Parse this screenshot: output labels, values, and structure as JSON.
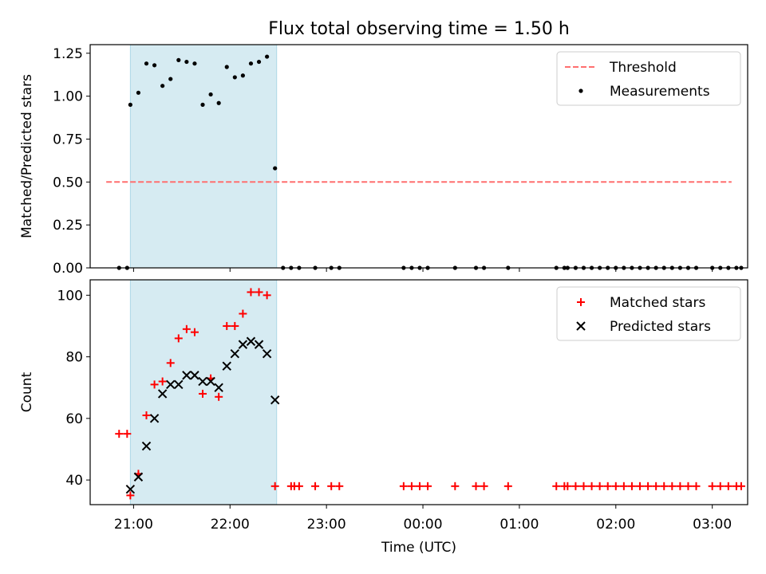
{
  "figure": {
    "title": "Flux total observing time = 1.50 h"
  },
  "chart_data": [
    {
      "type": "scatter",
      "panel": "top",
      "ylabel": "Matched/Predicted stars",
      "ylim": [
        0,
        1.3
      ],
      "yticks": [
        0,
        0.25,
        0.5,
        0.75,
        1.0,
        1.25
      ],
      "ytick_labels": [
        "0.00",
        "0.25",
        "0.50",
        "0.75",
        "1.00",
        "1.25"
      ],
      "xlim": [
        "20:33",
        "03:22"
      ],
      "xticks": [
        "21:00",
        "22:00",
        "23:00",
        "00:00",
        "01:00",
        "02:00",
        "03:00"
      ],
      "shaded_interval": {
        "start": "20:58",
        "end": "22:29",
        "color": "#add8e6"
      },
      "threshold": {
        "name": "Threshold",
        "value": 0.5,
        "x_range": [
          "20:43",
          "03:12"
        ],
        "color": "#ff6f6f",
        "style": "dashed"
      },
      "series": [
        {
          "name": "Measurements",
          "color": "#000000",
          "points": [
            [
              "20:51",
              0.0
            ],
            [
              "20:56",
              0.0
            ],
            [
              "20:58",
              0.95
            ],
            [
              "21:03",
              1.02
            ],
            [
              "21:08",
              1.19
            ],
            [
              "21:13",
              1.18
            ],
            [
              "21:18",
              1.06
            ],
            [
              "21:23",
              1.1
            ],
            [
              "21:28",
              1.21
            ],
            [
              "21:33",
              1.2
            ],
            [
              "21:38",
              1.19
            ],
            [
              "21:43",
              0.95
            ],
            [
              "21:48",
              1.01
            ],
            [
              "21:53",
              0.96
            ],
            [
              "21:58",
              1.17
            ],
            [
              "22:03",
              1.11
            ],
            [
              "22:08",
              1.12
            ],
            [
              "22:13",
              1.19
            ],
            [
              "22:18",
              1.2
            ],
            [
              "22:23",
              1.23
            ],
            [
              "22:28",
              0.58
            ],
            [
              "22:33",
              0.0
            ],
            [
              "22:38",
              0.0
            ],
            [
              "22:43",
              0.0
            ],
            [
              "22:53",
              0.0
            ],
            [
              "23:03",
              0.0
            ],
            [
              "23:08",
              0.0
            ],
            [
              "23:48",
              0.0
            ],
            [
              "23:53",
              0.0
            ],
            [
              "23:58",
              0.0
            ],
            [
              "00:03",
              0.0
            ],
            [
              "00:20",
              0.0
            ],
            [
              "00:33",
              0.0
            ],
            [
              "00:38",
              0.0
            ],
            [
              "00:53",
              0.0
            ],
            [
              "01:23",
              0.0
            ],
            [
              "01:28",
              0.0
            ],
            [
              "01:30",
              0.0
            ],
            [
              "01:35",
              0.0
            ],
            [
              "01:40",
              0.0
            ],
            [
              "01:45",
              0.0
            ],
            [
              "01:50",
              0.0
            ],
            [
              "01:55",
              0.0
            ],
            [
              "02:00",
              0.0
            ],
            [
              "02:05",
              0.0
            ],
            [
              "02:10",
              0.0
            ],
            [
              "02:15",
              0.0
            ],
            [
              "02:20",
              0.0
            ],
            [
              "02:25",
              0.0
            ],
            [
              "02:30",
              0.0
            ],
            [
              "02:35",
              0.0
            ],
            [
              "02:40",
              0.0
            ],
            [
              "02:45",
              0.0
            ],
            [
              "02:50",
              0.0
            ],
            [
              "03:00",
              0.0
            ],
            [
              "03:05",
              0.0
            ],
            [
              "03:10",
              0.0
            ],
            [
              "03:15",
              0.0
            ],
            [
              "03:18",
              0.0
            ]
          ]
        }
      ],
      "legend": {
        "position": "top-right",
        "entries": [
          "Threshold",
          "Measurements"
        ]
      }
    },
    {
      "type": "scatter",
      "panel": "bottom",
      "xlabel": "Time (UTC)",
      "ylabel": "Count",
      "ylim": [
        32,
        105
      ],
      "yticks": [
        40,
        60,
        80,
        100
      ],
      "ytick_labels": [
        "40",
        "60",
        "80",
        "100"
      ],
      "xlim": [
        "20:33",
        "03:22"
      ],
      "xticks": [
        "21:00",
        "22:00",
        "23:00",
        "00:00",
        "01:00",
        "02:00",
        "03:00"
      ],
      "xtick_labels": [
        "21:00",
        "22:00",
        "23:00",
        "00:00",
        "01:00",
        "02:00",
        "03:00"
      ],
      "shaded_interval": {
        "start": "20:58",
        "end": "22:29",
        "color": "#add8e6"
      },
      "series": [
        {
          "name": "Matched stars",
          "color": "#ff0000",
          "marker": "+",
          "points": [
            [
              "20:51",
              55
            ],
            [
              "20:56",
              55
            ],
            [
              "20:58",
              35
            ],
            [
              "21:03",
              42
            ],
            [
              "21:08",
              61
            ],
            [
              "21:13",
              71
            ],
            [
              "21:18",
              72
            ],
            [
              "21:23",
              78
            ],
            [
              "21:28",
              86
            ],
            [
              "21:33",
              89
            ],
            [
              "21:38",
              88
            ],
            [
              "21:43",
              68
            ],
            [
              "21:48",
              73
            ],
            [
              "21:53",
              67
            ],
            [
              "21:58",
              90
            ],
            [
              "22:03",
              90
            ],
            [
              "22:08",
              94
            ],
            [
              "22:13",
              101
            ],
            [
              "22:18",
              101
            ],
            [
              "22:23",
              100
            ],
            [
              "22:28",
              38
            ],
            [
              "22:38",
              38
            ],
            [
              "22:40",
              38
            ],
            [
              "22:43",
              38
            ],
            [
              "22:53",
              38
            ],
            [
              "23:03",
              38
            ],
            [
              "23:08",
              38
            ],
            [
              "23:48",
              38
            ],
            [
              "23:53",
              38
            ],
            [
              "23:58",
              38
            ],
            [
              "00:03",
              38
            ],
            [
              "00:20",
              38
            ],
            [
              "00:33",
              38
            ],
            [
              "00:38",
              38
            ],
            [
              "00:53",
              38
            ],
            [
              "01:23",
              38
            ],
            [
              "01:28",
              38
            ],
            [
              "01:30",
              38
            ],
            [
              "01:35",
              38
            ],
            [
              "01:40",
              38
            ],
            [
              "01:45",
              38
            ],
            [
              "01:50",
              38
            ],
            [
              "01:55",
              38
            ],
            [
              "02:00",
              38
            ],
            [
              "02:05",
              38
            ],
            [
              "02:10",
              38
            ],
            [
              "02:15",
              38
            ],
            [
              "02:20",
              38
            ],
            [
              "02:25",
              38
            ],
            [
              "02:30",
              38
            ],
            [
              "02:35",
              38
            ],
            [
              "02:40",
              38
            ],
            [
              "02:45",
              38
            ],
            [
              "02:50",
              38
            ],
            [
              "03:00",
              38
            ],
            [
              "03:05",
              38
            ],
            [
              "03:10",
              38
            ],
            [
              "03:15",
              38
            ],
            [
              "03:18",
              38
            ]
          ]
        },
        {
          "name": "Predicted stars",
          "color": "#000000",
          "marker": "x",
          "points": [
            [
              "20:58",
              37
            ],
            [
              "21:03",
              41
            ],
            [
              "21:08",
              51
            ],
            [
              "21:13",
              60
            ],
            [
              "21:18",
              68
            ],
            [
              "21:23",
              71
            ],
            [
              "21:28",
              71
            ],
            [
              "21:33",
              74
            ],
            [
              "21:38",
              74
            ],
            [
              "21:43",
              72
            ],
            [
              "21:48",
              72
            ],
            [
              "21:53",
              70
            ],
            [
              "21:58",
              77
            ],
            [
              "22:03",
              81
            ],
            [
              "22:08",
              84
            ],
            [
              "22:13",
              85
            ],
            [
              "22:18",
              84
            ],
            [
              "22:23",
              81
            ],
            [
              "22:28",
              66
            ]
          ]
        }
      ],
      "legend": {
        "position": "top-right",
        "entries": [
          "Matched stars",
          "Predicted stars"
        ]
      }
    }
  ]
}
